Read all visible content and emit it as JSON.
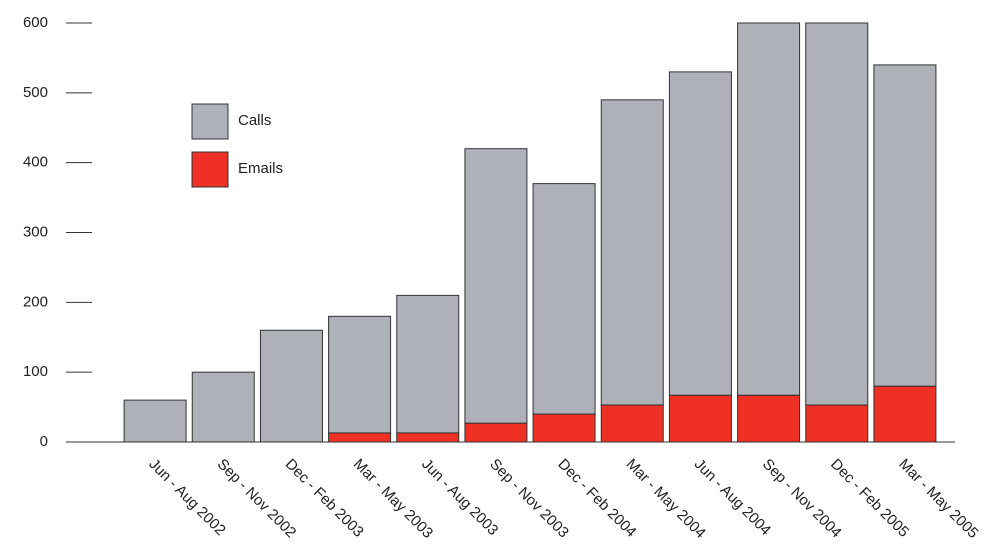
{
  "chart_data": {
    "type": "stacked_bar",
    "categories": [
      "Jun - Aug 2002",
      "Sep - Nov 2002",
      "Dec - Feb 2003",
      "Mar - May 2003",
      "Jun - Aug 2003",
      "Sep - Nov 2003",
      "Dec - Feb 2004",
      "Mar - May 2004",
      "Jun - Aug 2004",
      "Sep - Nov 2004",
      "Dec - Feb 2005",
      "Mar - May 2005"
    ],
    "series": [
      {
        "name": "Emails",
        "color": "#ee3124",
        "values": [
          0,
          0,
          0,
          13,
          13,
          27,
          40,
          53,
          67,
          67,
          53,
          80
        ]
      },
      {
        "name": "Calls",
        "color": "#aeb1b8",
        "values": [
          60,
          100,
          160,
          167,
          197,
          393,
          330,
          437,
          463,
          533,
          547,
          460
        ]
      }
    ],
    "ylim": [
      0,
      600
    ],
    "yticks": [
      0,
      100,
      200,
      300,
      400,
      500,
      600
    ]
  }
}
